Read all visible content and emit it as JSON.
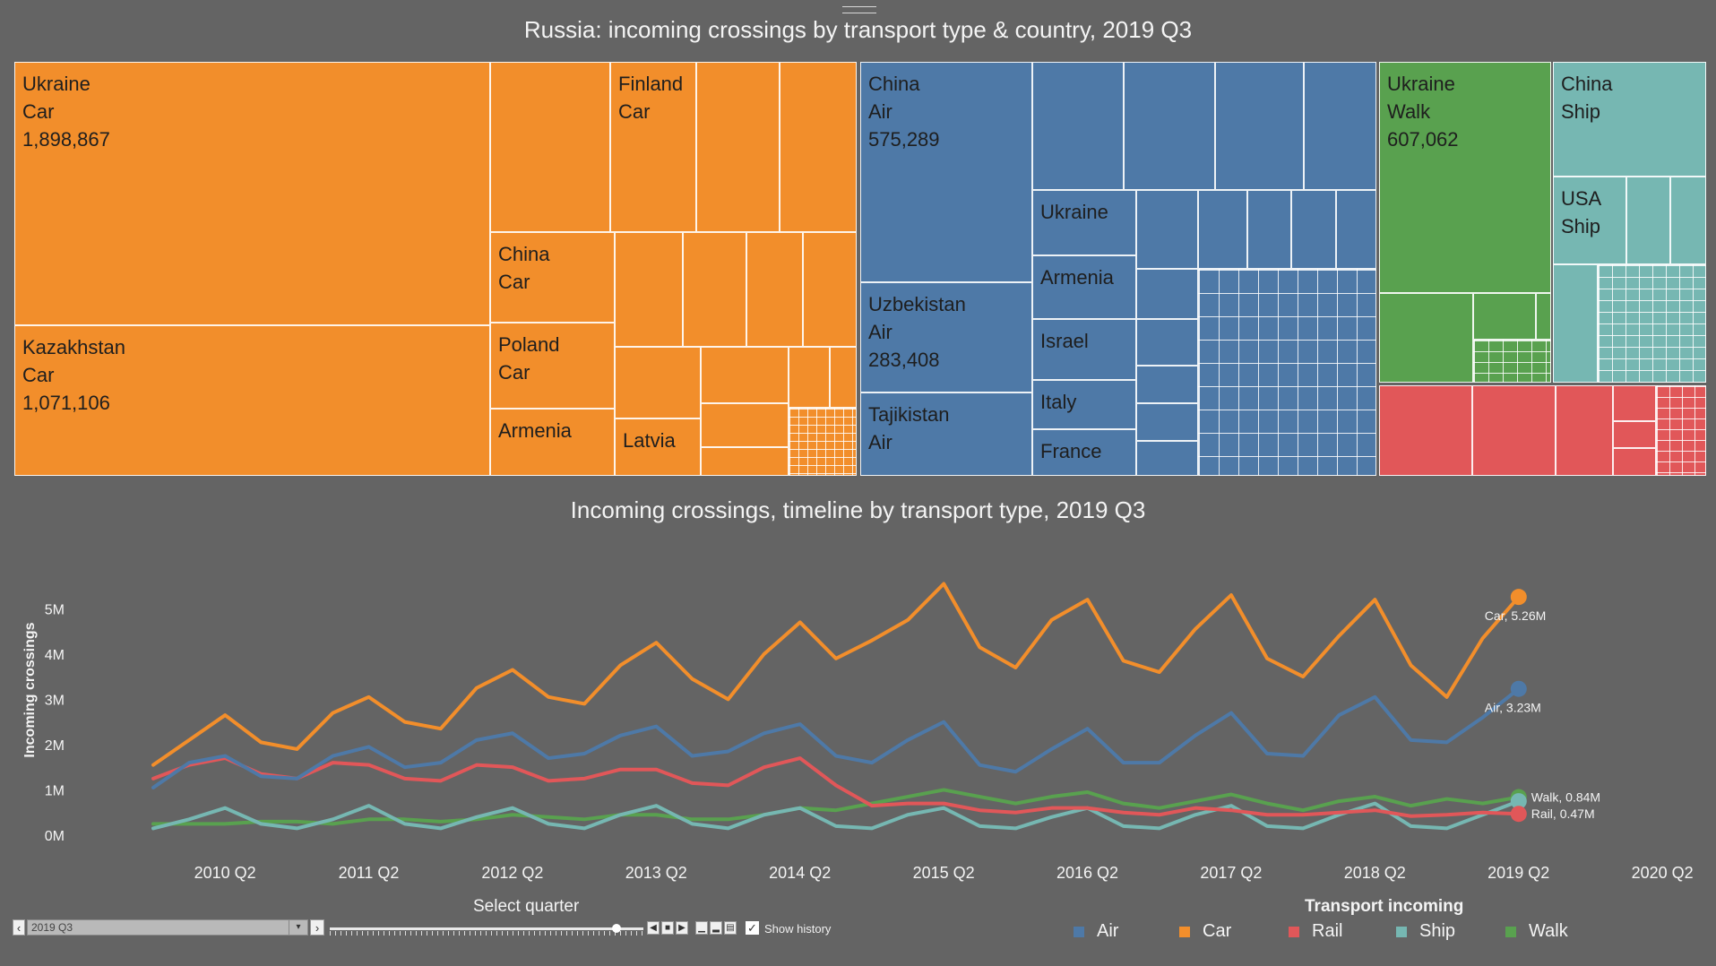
{
  "treemap": {
    "title": "Russia: incoming crossings by transport type & country, 2019 Q3",
    "labels": {
      "ukraine_car": "Ukraine\nCar\n1,898,867",
      "kazakhstan_car": "Kazakhstan\nCar\n1,071,106",
      "finland_car": "Finland\nCar",
      "china_car": "China\nCar",
      "poland_car": "Poland\nCar",
      "armenia_car": "Armenia",
      "latvia_car": "Latvia",
      "china_air": "China\nAir\n575,289",
      "uzbekistan_air": "Uzbekistan\nAir\n283,408",
      "tajikistan_air": "Tajikistan\nAir",
      "ukraine_air": "Ukraine",
      "armenia_air": "Armenia",
      "israel_air": "Israel",
      "italy_air": "Italy",
      "france_air": "France",
      "ukraine_walk": "Ukraine\nWalk\n607,062",
      "china_ship": "China\nShip",
      "usa_ship": "USA\nShip"
    }
  },
  "timeline": {
    "title": "Incoming crossings, timeline by transport type, 2019 Q3",
    "y_axis_title": "Incoming crossings",
    "end_labels": {
      "Car": "Car, 5.26M",
      "Air": "Air, 3.23M",
      "Walk": "Walk, 0.84M",
      "Rail": "Rail, 0.47M"
    }
  },
  "controls": {
    "select_title": "Select quarter",
    "selected_quarter": "2019 Q3",
    "show_history_label": "Show history"
  },
  "legend": {
    "title": "Transport incoming",
    "items": [
      {
        "label": "Air",
        "color": "#4e79a7"
      },
      {
        "label": "Car",
        "color": "#f28e2b"
      },
      {
        "label": "Rail",
        "color": "#e15759"
      },
      {
        "label": "Ship",
        "color": "#76b7b2"
      },
      {
        "label": "Walk",
        "color": "#59a14f"
      }
    ]
  },
  "colors": {
    "Air": "#4e79a7",
    "Car": "#f28e2b",
    "Rail": "#e15759",
    "Ship": "#76b7b2",
    "Walk": "#59a14f"
  },
  "chart_data": [
    {
      "type": "treemap",
      "title": "Russia: incoming crossings by transport type & country, 2019 Q3",
      "values": [
        {
          "country": "Ukraine",
          "transport": "Car",
          "value": 1898867
        },
        {
          "country": "Kazakhstan",
          "transport": "Car",
          "value": 1071106
        },
        {
          "country": "China",
          "transport": "Air",
          "value": 575289
        },
        {
          "country": "Uzbekistan",
          "transport": "Air",
          "value": 283408
        },
        {
          "country": "Ukraine",
          "transport": "Walk",
          "value": 607062
        }
      ]
    },
    {
      "type": "line",
      "title": "Incoming crossings, timeline by transport type, 2019 Q3",
      "ylabel": "Incoming crossings",
      "xlabel": "",
      "ylim": [
        0,
        5500000
      ],
      "y_ticks": [
        "0M",
        "1M",
        "2M",
        "3M",
        "4M",
        "5M"
      ],
      "x_ticks": [
        "2010 Q2",
        "2011 Q2",
        "2012 Q2",
        "2013 Q2",
        "2014 Q2",
        "2015 Q2",
        "2016 Q2",
        "2017 Q2",
        "2018 Q2",
        "2019 Q2",
        "2020 Q2"
      ],
      "x": [
        "2010 Q1",
        "2010 Q2",
        "2010 Q3",
        "2010 Q4",
        "2011 Q1",
        "2011 Q2",
        "2011 Q3",
        "2011 Q4",
        "2012 Q1",
        "2012 Q2",
        "2012 Q3",
        "2012 Q4",
        "2013 Q1",
        "2013 Q2",
        "2013 Q3",
        "2013 Q4",
        "2014 Q1",
        "2014 Q2",
        "2014 Q3",
        "2014 Q4",
        "2015 Q1",
        "2015 Q2",
        "2015 Q3",
        "2015 Q4",
        "2016 Q1",
        "2016 Q2",
        "2016 Q3",
        "2016 Q4",
        "2017 Q1",
        "2017 Q2",
        "2017 Q3",
        "2017 Q4",
        "2018 Q1",
        "2018 Q2",
        "2018 Q3",
        "2018 Q4",
        "2019 Q1",
        "2019 Q2",
        "2019 Q3"
      ],
      "series": [
        {
          "name": "Car",
          "values": [
            1.55,
            2.1,
            2.65,
            2.05,
            1.9,
            2.7,
            3.05,
            2.5,
            2.35,
            3.25,
            3.65,
            3.05,
            2.9,
            3.75,
            4.25,
            3.45,
            3.0,
            4.0,
            4.7,
            3.9,
            4.3,
            4.75,
            5.55,
            4.15,
            3.7,
            4.75,
            5.2,
            3.85,
            3.6,
            4.55,
            5.3,
            3.9,
            3.5,
            4.4,
            5.2,
            3.75,
            3.05,
            4.35,
            5.26
          ]
        },
        {
          "name": "Air",
          "values": [
            1.05,
            1.6,
            1.75,
            1.3,
            1.25,
            1.75,
            1.95,
            1.5,
            1.6,
            2.1,
            2.25,
            1.7,
            1.8,
            2.2,
            2.4,
            1.75,
            1.85,
            2.25,
            2.45,
            1.75,
            1.6,
            2.1,
            2.5,
            1.55,
            1.4,
            1.9,
            2.35,
            1.6,
            1.6,
            2.2,
            2.7,
            1.8,
            1.75,
            2.65,
            3.05,
            2.1,
            2.05,
            2.6,
            3.23
          ]
        },
        {
          "name": "Rail",
          "values": [
            1.25,
            1.55,
            1.7,
            1.35,
            1.25,
            1.6,
            1.55,
            1.25,
            1.2,
            1.55,
            1.5,
            1.2,
            1.25,
            1.45,
            1.45,
            1.15,
            1.1,
            1.5,
            1.7,
            1.1,
            0.65,
            0.7,
            0.7,
            0.55,
            0.5,
            0.6,
            0.6,
            0.5,
            0.45,
            0.6,
            0.55,
            0.45,
            0.45,
            0.5,
            0.55,
            0.42,
            0.45,
            0.5,
            0.47
          ]
        },
        {
          "name": "Ship",
          "values": [
            0.15,
            0.35,
            0.6,
            0.25,
            0.15,
            0.35,
            0.65,
            0.25,
            0.15,
            0.4,
            0.6,
            0.25,
            0.15,
            0.45,
            0.65,
            0.25,
            0.15,
            0.45,
            0.6,
            0.2,
            0.15,
            0.45,
            0.6,
            0.2,
            0.15,
            0.4,
            0.6,
            0.2,
            0.15,
            0.45,
            0.65,
            0.2,
            0.15,
            0.45,
            0.7,
            0.2,
            0.15,
            0.45,
            0.75
          ]
        },
        {
          "name": "Walk",
          "values": [
            0.25,
            0.25,
            0.25,
            0.3,
            0.3,
            0.25,
            0.35,
            0.35,
            0.3,
            0.35,
            0.45,
            0.4,
            0.35,
            0.45,
            0.45,
            0.35,
            0.35,
            0.45,
            0.6,
            0.55,
            0.7,
            0.85,
            1.0,
            0.85,
            0.7,
            0.85,
            0.95,
            0.7,
            0.6,
            0.75,
            0.9,
            0.7,
            0.55,
            0.75,
            0.85,
            0.65,
            0.8,
            0.7,
            0.84
          ]
        }
      ]
    }
  ]
}
